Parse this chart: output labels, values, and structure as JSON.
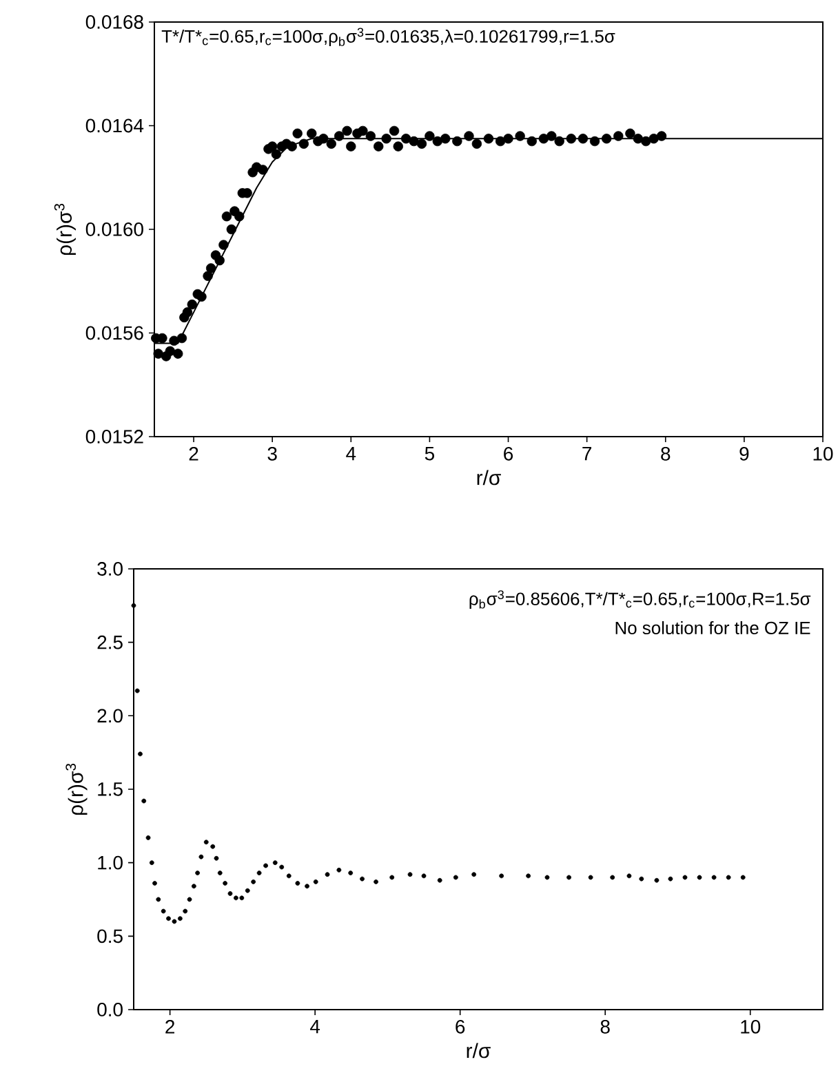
{
  "chart_data": [
    {
      "type": "scatter",
      "xlabel": "r/σ",
      "ylabel": "ρ(r)σ$^{3}$",
      "annotations": [
        "T*/T*$_{c}$=0.65,r$_{c}$=100σ,ρ$_{b}$σ$^{3}$=0.01635,λ=0.10261799,r=1.5σ"
      ],
      "xlim": [
        1.5,
        10
      ],
      "xticks": [
        2,
        3,
        4,
        5,
        6,
        7,
        8,
        9,
        10
      ],
      "ylim": [
        0.0152,
        0.0168
      ],
      "yticks": [
        0.0152,
        0.0156,
        {
          "value": 0.016,
          "label": "0.0160"
        },
        0.0164,
        0.0168
      ],
      "series": [
        {
          "marker": "circle",
          "color": "#000000",
          "x": [
            1.52,
            1.55,
            1.6,
            1.65,
            1.7,
            1.75,
            1.8,
            1.85,
            1.88,
            1.92,
            1.98,
            2.05,
            2.1,
            2.18,
            2.22,
            2.28,
            2.33,
            2.38,
            2.42,
            2.48,
            2.52,
            2.58,
            2.62,
            2.68,
            2.75,
            2.8,
            2.88,
            2.95,
            3.0,
            3.05,
            3.12,
            3.18,
            3.25,
            3.32,
            3.4,
            3.5,
            3.58,
            3.65,
            3.75,
            3.85,
            3.95,
            4.0,
            4.08,
            4.15,
            4.25,
            4.35,
            4.45,
            4.55,
            4.6,
            4.7,
            4.8,
            4.9,
            5.0,
            5.1,
            5.2,
            5.35,
            5.5,
            5.6,
            5.75,
            5.9,
            6.0,
            6.15,
            6.3,
            6.45,
            6.55,
            6.65,
            6.8,
            6.95,
            7.1,
            7.25,
            7.4,
            7.55,
            7.65,
            7.75,
            7.85,
            7.95
          ],
          "values": [
            0.01558,
            0.01552,
            0.01558,
            0.01551,
            0.01553,
            0.01557,
            0.01552,
            0.01558,
            0.01566,
            0.01568,
            0.01571,
            0.01575,
            0.01574,
            0.01582,
            0.01585,
            0.0159,
            0.01588,
            0.01594,
            0.01605,
            0.016,
            0.01607,
            0.01605,
            0.01614,
            0.01614,
            0.01622,
            0.01624,
            0.01623,
            0.01631,
            0.01632,
            0.01629,
            0.01632,
            0.01633,
            0.01632,
            0.01637,
            0.01633,
            0.01637,
            0.01634,
            0.01635,
            0.01633,
            0.01636,
            0.01638,
            0.01632,
            0.01637,
            0.01638,
            0.01636,
            0.01632,
            0.01635,
            0.01638,
            0.01632,
            0.01635,
            0.01634,
            0.01633,
            0.01636,
            0.01634,
            0.01635,
            0.01634,
            0.01636,
            0.01633,
            0.01635,
            0.01634,
            0.01635,
            0.01636,
            0.01634,
            0.01635,
            0.01636,
            0.01634,
            0.01635,
            0.01635,
            0.01634,
            0.01635,
            0.01636,
            0.01637,
            0.01635,
            0.01634,
            0.01635,
            0.01636
          ]
        },
        {
          "type": "line",
          "color": "#000000",
          "x": [
            1.5,
            1.8,
            2.0,
            2.5,
            2.8,
            3.0,
            3.2,
            3.5,
            10
          ],
          "values": [
            0.01556,
            0.01556,
            0.01568,
            0.01598,
            0.01616,
            0.01626,
            0.01632,
            0.01635,
            0.01635
          ]
        }
      ]
    },
    {
      "type": "scatter",
      "xlabel": "r/σ",
      "ylabel": "ρ(r)σ$^{3}$",
      "annotations": [
        "ρ$_{b}$σ$^{3}$=0.85606,T*/T*$_{c}$=0.65,r$_{c}$=100σ,R=1.5σ",
        "No solution for the OZ IE"
      ],
      "xlim": [
        1.5,
        11
      ],
      "xticks": [
        2,
        4,
        6,
        8,
        10
      ],
      "ylim": [
        0,
        3
      ],
      "yticks": [
        {
          "value": 0,
          "label": "0.0"
        },
        {
          "value": 0.5,
          "label": "0.5"
        },
        {
          "value": 1,
          "label": "1.0"
        },
        {
          "value": 1.5,
          "label": "1.5"
        },
        {
          "value": 2,
          "label": "2.0"
        },
        {
          "value": 2.5,
          "label": "2.5"
        },
        {
          "value": 3,
          "label": "3.0"
        }
      ],
      "series": [
        {
          "marker": "circle",
          "color": "#000000",
          "x": [
            1.5,
            1.55,
            1.59,
            1.64,
            1.7,
            1.75,
            1.79,
            1.84,
            1.91,
            1.98,
            2.06,
            2.14,
            2.21,
            2.27,
            2.33,
            2.38,
            2.43,
            2.5,
            2.59,
            2.64,
            2.69,
            2.76,
            2.83,
            2.91,
            2.99,
            3.07,
            3.15,
            3.23,
            3.32,
            3.45,
            3.54,
            3.64,
            3.76,
            3.89,
            4.01,
            4.17,
            4.33,
            4.49,
            4.65,
            4.84,
            5.06,
            5.31,
            5.5,
            5.72,
            5.94,
            6.19,
            6.57,
            6.94,
            7.2,
            7.5,
            7.8,
            8.1,
            8.33,
            8.5,
            8.71,
            8.9,
            9.1,
            9.3,
            9.5,
            9.7,
            9.9
          ],
          "values": [
            2.75,
            2.17,
            1.74,
            1.42,
            1.17,
            1.0,
            0.86,
            0.75,
            0.67,
            0.62,
            0.6,
            0.62,
            0.67,
            0.75,
            0.84,
            0.93,
            1.04,
            1.14,
            1.11,
            1.03,
            0.93,
            0.86,
            0.79,
            0.76,
            0.76,
            0.81,
            0.87,
            0.93,
            0.98,
            1.0,
            0.97,
            0.91,
            0.86,
            0.84,
            0.87,
            0.92,
            0.95,
            0.93,
            0.89,
            0.87,
            0.9,
            0.92,
            0.91,
            0.88,
            0.9,
            0.92,
            0.91,
            0.91,
            0.9,
            0.9,
            0.9,
            0.9,
            0.91,
            0.89,
            0.88,
            0.89,
            0.9,
            0.9,
            0.9,
            0.9,
            0.9
          ]
        }
      ]
    }
  ]
}
